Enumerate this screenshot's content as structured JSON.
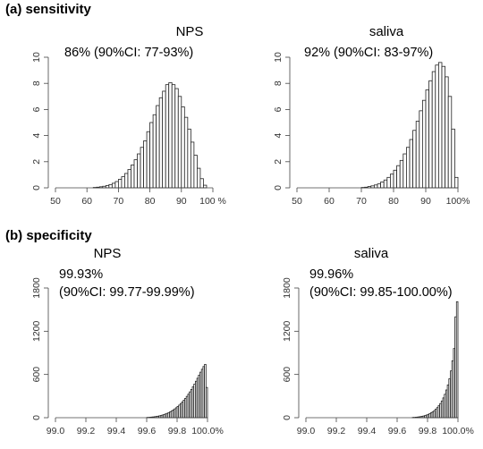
{
  "sections": {
    "a_title": "(a) sensitivity",
    "b_title": "(b) specificity"
  },
  "chart_data": [
    {
      "type": "bar",
      "title": "NPS",
      "annotation_lines": [
        "86% (90%CI: 77-93%)"
      ],
      "x_tick_labels": [
        "50",
        "60",
        "70",
        "80",
        "90",
        "100 %"
      ],
      "y_tick_labels": [
        "0",
        "2",
        "4",
        "6",
        "8",
        "10"
      ],
      "xlim": [
        50,
        100
      ],
      "ylim": [
        0,
        10
      ],
      "bin_width": 1,
      "x": [
        62,
        63,
        64,
        65,
        66,
        67,
        68,
        69,
        70,
        71,
        72,
        73,
        74,
        75,
        76,
        77,
        78,
        79,
        80,
        81,
        82,
        83,
        84,
        85,
        86,
        87,
        88,
        89,
        90,
        91,
        92,
        93,
        94,
        95,
        96,
        97
      ],
      "values": [
        0.03,
        0.05,
        0.08,
        0.12,
        0.18,
        0.25,
        0.35,
        0.48,
        0.65,
        0.85,
        1.1,
        1.4,
        1.75,
        2.15,
        2.6,
        3.1,
        3.6,
        4.3,
        5.0,
        5.6,
        6.3,
        6.9,
        7.4,
        7.9,
        8.05,
        7.9,
        7.6,
        7.0,
        6.2,
        5.4,
        4.5,
        3.5,
        2.5,
        1.5,
        0.7,
        0.2
      ]
    },
    {
      "type": "bar",
      "title": "saliva",
      "annotation_lines": [
        "92% (90%CI: 83-97%)"
      ],
      "x_tick_labels": [
        "50",
        "60",
        "70",
        "80",
        "90",
        "100%"
      ],
      "y_tick_labels": [
        "0",
        "2",
        "4",
        "6",
        "8",
        "10"
      ],
      "xlim": [
        50,
        100
      ],
      "ylim": [
        0,
        10
      ],
      "bin_width": 1,
      "x": [
        70,
        71,
        72,
        73,
        74,
        75,
        76,
        77,
        78,
        79,
        80,
        81,
        82,
        83,
        84,
        85,
        86,
        87,
        88,
        89,
        90,
        91,
        92,
        93,
        94,
        95,
        96,
        97,
        98,
        99
      ],
      "values": [
        0.03,
        0.05,
        0.1,
        0.15,
        0.22,
        0.3,
        0.45,
        0.6,
        0.8,
        1.05,
        1.35,
        1.7,
        2.1,
        2.6,
        3.1,
        3.7,
        4.4,
        5.1,
        5.9,
        6.7,
        7.5,
        8.2,
        8.9,
        9.4,
        9.6,
        9.3,
        8.5,
        7.0,
        4.5,
        0.8
      ]
    },
    {
      "type": "bar",
      "title": "NPS",
      "annotation_lines": [
        "99.93%",
        "(90%CI: 99.77-99.99%)"
      ],
      "x_tick_labels": [
        "99.0",
        "99.2",
        "99.4",
        "99.6",
        "99.8",
        "100.0%"
      ],
      "y_tick_labels": [
        "0",
        "600",
        "1200",
        "1800"
      ],
      "xlim": [
        99.0,
        100.0
      ],
      "ylim": [
        0,
        1800
      ],
      "bin_width": 0.01,
      "x": [
        99.6,
        99.61,
        99.62,
        99.63,
        99.64,
        99.65,
        99.66,
        99.67,
        99.68,
        99.69,
        99.7,
        99.71,
        99.72,
        99.73,
        99.74,
        99.75,
        99.76,
        99.77,
        99.78,
        99.79,
        99.8,
        99.81,
        99.82,
        99.83,
        99.84,
        99.85,
        99.86,
        99.87,
        99.88,
        99.89,
        99.9,
        99.91,
        99.92,
        99.93,
        99.94,
        99.95,
        99.96,
        99.97,
        99.98,
        99.99
      ],
      "values": [
        4,
        5,
        7,
        9,
        11,
        14,
        17,
        21,
        26,
        31,
        37,
        44,
        52,
        60,
        70,
        81,
        93,
        107,
        122,
        138,
        156,
        175,
        196,
        218,
        242,
        268,
        296,
        326,
        358,
        392,
        428,
        466,
        506,
        548,
        590,
        632,
        672,
        710,
        740,
        420
      ]
    },
    {
      "type": "bar",
      "title": "saliva",
      "annotation_lines": [
        "99.96%",
        "(90%CI: 99.85-100.00%)"
      ],
      "x_tick_labels": [
        "99.0",
        "99.2",
        "99.4",
        "99.6",
        "99.8",
        "100.0%"
      ],
      "y_tick_labels": [
        "0",
        "600",
        "1200",
        "1800"
      ],
      "xlim": [
        99.0,
        100.0
      ],
      "ylim": [
        0,
        1800
      ],
      "bin_width": 0.01,
      "x": [
        99.7,
        99.71,
        99.72,
        99.73,
        99.74,
        99.75,
        99.76,
        99.77,
        99.78,
        99.79,
        99.8,
        99.81,
        99.82,
        99.83,
        99.84,
        99.85,
        99.86,
        99.87,
        99.88,
        99.89,
        99.9,
        99.91,
        99.92,
        99.93,
        99.94,
        99.95,
        99.96,
        99.97,
        99.98,
        99.99
      ],
      "values": [
        4,
        5,
        7,
        9,
        12,
        15,
        19,
        24,
        30,
        37,
        46,
        56,
        68,
        82,
        98,
        118,
        140,
        166,
        196,
        232,
        275,
        325,
        385,
        455,
        540,
        650,
        790,
        960,
        1400,
        1610
      ]
    }
  ]
}
